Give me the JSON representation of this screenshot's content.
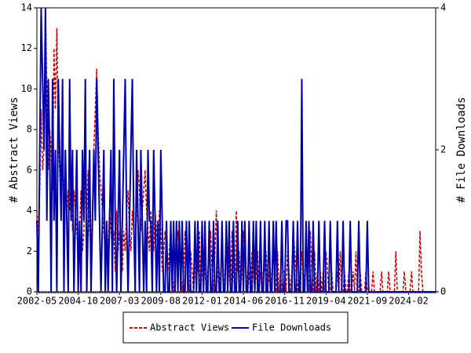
{
  "chart_data": {
    "type": "line",
    "y_label": "# Abstract Views",
    "y2_label": "# File Downloads",
    "categories": [
      "2002-05",
      null,
      null,
      null,
      null,
      null,
      null,
      null,
      null,
      null,
      null,
      null,
      null,
      null,
      null,
      null,
      null,
      null,
      null,
      null,
      null,
      null,
      null,
      null,
      null,
      null,
      null,
      null,
      null,
      "2004-10",
      null,
      null,
      null,
      null,
      null,
      null,
      null,
      null,
      null,
      null,
      null,
      null,
      null,
      null,
      null,
      null,
      null,
      null,
      null,
      null,
      null,
      null,
      null,
      null,
      null,
      null,
      null,
      null,
      "2007-03",
      null,
      null,
      null,
      null,
      null,
      null,
      null,
      null,
      null,
      null,
      null,
      null,
      null,
      null,
      null,
      null,
      null,
      null,
      null,
      null,
      null,
      null,
      null,
      null,
      null,
      null,
      null,
      null,
      "2009-08",
      null,
      null,
      null,
      null,
      null,
      null,
      null,
      null,
      null,
      null,
      null,
      null,
      null,
      null,
      null,
      null,
      null,
      null,
      null,
      null,
      null,
      null,
      null,
      null,
      null,
      null,
      null,
      null,
      "2012-01",
      null,
      null,
      null,
      null,
      null,
      null,
      null,
      null,
      null,
      null,
      null,
      null,
      null,
      null,
      null,
      null,
      null,
      null,
      null,
      null,
      null,
      null,
      null,
      null,
      null,
      null,
      null,
      null,
      "2014-06",
      null,
      null,
      null,
      null,
      null,
      null,
      null,
      null,
      null,
      null,
      null,
      null,
      null,
      null,
      null,
      null,
      null,
      null,
      null,
      null,
      null,
      null,
      null,
      null,
      null,
      null,
      null,
      null,
      "2016-11",
      null,
      null,
      null,
      null,
      null,
      null,
      null,
      null,
      null,
      null,
      null,
      null,
      null,
      null,
      null,
      null,
      null,
      null,
      null,
      null,
      null,
      null,
      null,
      null,
      null,
      null,
      null,
      null,
      "2019-04",
      null,
      null,
      null,
      null,
      null,
      null,
      null,
      null,
      null,
      null,
      null,
      null,
      null,
      null,
      null,
      null,
      null,
      null,
      null,
      null,
      null,
      null,
      null,
      null,
      null,
      null,
      null,
      null,
      "2021-09",
      null,
      null,
      null,
      null,
      null,
      null,
      null,
      null,
      null,
      null,
      null,
      null,
      null,
      null,
      null,
      null,
      null,
      null,
      null,
      null,
      null,
      null,
      null,
      null,
      null,
      null,
      null,
      null,
      "2024-02",
      null,
      null,
      null,
      null,
      null,
      null,
      null,
      null,
      null,
      null,
      null,
      null,
      null,
      null,
      null,
      null,
      null,
      null,
      null
    ],
    "series": [
      {
        "name": "Abstract Views",
        "color": "#cc0000",
        "dashed": true,
        "values": [
          4,
          3,
          5,
          9,
          6,
          7,
          14,
          10,
          6,
          8,
          7,
          5,
          12,
          9,
          13,
          8,
          6,
          4,
          7,
          5,
          6,
          4,
          5,
          4,
          6,
          3,
          5,
          4,
          3,
          2,
          3,
          5,
          2,
          3,
          6,
          4,
          6,
          3,
          2,
          4,
          7,
          9,
          11,
          8,
          6,
          5,
          4,
          3,
          2,
          3,
          2,
          4,
          3,
          2,
          3,
          1,
          4,
          2,
          3,
          2,
          1,
          3,
          2,
          4,
          5,
          3,
          2,
          4,
          3,
          2,
          4,
          6,
          5,
          3,
          4,
          5,
          6,
          4,
          3,
          2,
          4,
          3,
          2,
          4,
          3,
          2,
          4,
          3,
          1,
          2,
          3,
          2,
          1,
          2,
          3,
          1,
          0,
          1,
          2,
          3,
          2,
          1,
          0,
          1,
          3,
          2,
          1,
          0,
          2,
          1,
          0,
          1,
          2,
          1,
          3,
          0,
          1,
          2,
          1,
          0,
          1,
          2,
          3,
          1,
          0,
          2,
          4,
          1,
          0,
          1,
          2,
          0,
          1,
          3,
          2,
          1,
          0,
          3,
          1,
          0,
          4,
          1,
          2,
          0,
          1,
          3,
          2,
          1,
          0,
          1,
          0,
          2,
          1,
          0,
          1,
          2,
          0,
          1,
          0,
          1,
          1,
          2,
          0,
          1,
          0,
          1,
          2,
          1,
          0,
          2,
          0,
          1,
          0,
          1,
          1,
          0,
          2,
          1,
          0,
          1,
          3,
          2,
          1,
          0,
          1,
          0,
          2,
          1,
          0,
          2,
          1,
          0,
          3,
          1,
          0,
          2,
          0,
          1,
          0,
          1,
          0,
          1,
          0,
          2,
          1,
          0,
          0,
          1,
          0,
          0,
          0,
          1,
          0,
          2,
          0,
          0,
          1,
          0,
          0,
          1,
          0,
          0,
          1,
          0,
          2,
          0,
          0,
          1,
          0,
          0,
          0,
          1,
          0,
          0,
          0,
          0,
          1,
          0,
          0,
          0,
          0,
          0,
          1,
          0,
          0,
          0,
          0,
          1,
          0,
          0,
          0,
          0,
          2,
          0,
          0,
          0,
          0,
          0,
          1,
          0,
          0,
          0,
          0,
          1,
          0,
          0,
          0,
          0,
          0,
          3,
          1,
          0,
          0,
          0,
          0,
          0,
          0,
          0,
          0,
          0,
          0
        ]
      },
      {
        "name": "File Downloads",
        "color": "#0000aa",
        "axis": "y2",
        "values": [
          1,
          0,
          2,
          4,
          3,
          2,
          4,
          1,
          3,
          2,
          0,
          3,
          1,
          2,
          0,
          3,
          2,
          1,
          3,
          0,
          2,
          1,
          0,
          3,
          1,
          2,
          0,
          1,
          2,
          0,
          1,
          0,
          2,
          1,
          3,
          0,
          1,
          2,
          0,
          1,
          2,
          1,
          3,
          2,
          1,
          0,
          1,
          2,
          0,
          1,
          0,
          1,
          2,
          0,
          3,
          1,
          0,
          1,
          2,
          0,
          1,
          2,
          3,
          1,
          0,
          1,
          2,
          3,
          1,
          0,
          2,
          1,
          0,
          2,
          1,
          0,
          1,
          0,
          2,
          1,
          1,
          0,
          2,
          1,
          0,
          1,
          0,
          2,
          1,
          0,
          0,
          1,
          0,
          0,
          1,
          0,
          1,
          0,
          1,
          0,
          1,
          0,
          1,
          0,
          0,
          1,
          0,
          1,
          0,
          0,
          0,
          1,
          0,
          1,
          0,
          0,
          1,
          0,
          1,
          0,
          0,
          1,
          0,
          0,
          1,
          0,
          0,
          1,
          0,
          0,
          1,
          0,
          0,
          1,
          0,
          1,
          0,
          0,
          1,
          0,
          0,
          1,
          0,
          0,
          1,
          0,
          1,
          0,
          0,
          1,
          0,
          0,
          1,
          0,
          1,
          0,
          0,
          1,
          0,
          0,
          1,
          0,
          0,
          1,
          0,
          0,
          1,
          0,
          1,
          0,
          0,
          0,
          1,
          0,
          0,
          1,
          1,
          0,
          0,
          0,
          1,
          0,
          0,
          1,
          0,
          0,
          3,
          0,
          0,
          1,
          0,
          1,
          0,
          0,
          1,
          0,
          0,
          0,
          1,
          0,
          0,
          0,
          1,
          0,
          0,
          0,
          1,
          0,
          0,
          0,
          0,
          1,
          0,
          0,
          0,
          1,
          0,
          0,
          0,
          0,
          1,
          0,
          0,
          0,
          0,
          0,
          1,
          0,
          0,
          0,
          0,
          0,
          1,
          0,
          0,
          0,
          0,
          0,
          0,
          0,
          0,
          0,
          0,
          0,
          0,
          0,
          0,
          0,
          0,
          0,
          0,
          0,
          0,
          0,
          0,
          0,
          0,
          0,
          0,
          0,
          0,
          0,
          0,
          0,
          0,
          0,
          0,
          0,
          0,
          0,
          0,
          0,
          0,
          0,
          0,
          0,
          0,
          0,
          0,
          0,
          0
        ]
      }
    ],
    "ylim": [
      0,
      14
    ],
    "yticks": [
      0,
      2,
      4,
      6,
      8,
      10,
      12,
      14
    ],
    "y2lim": [
      0,
      4
    ],
    "y2ticks": [
      0,
      2,
      4
    ],
    "legend": "bottom"
  }
}
